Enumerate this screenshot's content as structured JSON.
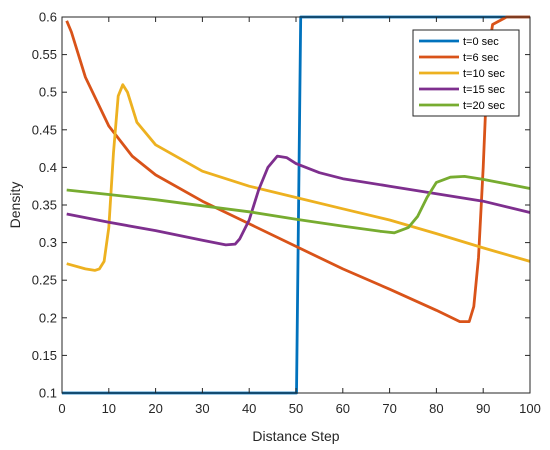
{
  "chart_data": {
    "type": "line",
    "xlabel": "Distance Step",
    "ylabel": "Density",
    "xlim": [
      0,
      100
    ],
    "ylim": [
      0.1,
      0.6
    ],
    "xticks": [
      "0",
      "10",
      "20",
      "30",
      "40",
      "50",
      "60",
      "70",
      "80",
      "90",
      "100"
    ],
    "yticks": [
      "0.1",
      "0.15",
      "0.2",
      "0.25",
      "0.3",
      "0.35",
      "0.4",
      "0.45",
      "0.5",
      "0.55",
      "0.6"
    ],
    "grid": false,
    "legend_position": "top-right",
    "series": [
      {
        "name": "t=0 sec",
        "color": "#0072BD",
        "x": [
          0,
          50,
          50.1,
          51,
          51.5,
          100
        ],
        "y": [
          0.1,
          0.1,
          0.1,
          0.6,
          0.6,
          0.6
        ]
      },
      {
        "name": "t=6 sec",
        "color": "#D95319",
        "x": [
          1,
          2,
          5,
          10,
          15,
          20,
          30,
          40,
          50,
          60,
          70,
          80,
          85,
          87,
          88,
          89,
          90,
          91,
          92,
          95,
          100
        ],
        "y": [
          0.595,
          0.58,
          0.52,
          0.455,
          0.415,
          0.39,
          0.355,
          0.325,
          0.295,
          0.265,
          0.238,
          0.21,
          0.195,
          0.195,
          0.215,
          0.28,
          0.4,
          0.55,
          0.59,
          0.6,
          0.6
        ]
      },
      {
        "name": "t=10 sec",
        "color": "#EDB120",
        "x": [
          1,
          5,
          7,
          8,
          9,
          10,
          11,
          12,
          13,
          14,
          16,
          20,
          30,
          40,
          50,
          60,
          70,
          80,
          90,
          100
        ],
        "y": [
          0.272,
          0.265,
          0.263,
          0.265,
          0.275,
          0.32,
          0.42,
          0.495,
          0.51,
          0.5,
          0.46,
          0.43,
          0.395,
          0.375,
          0.36,
          0.345,
          0.33,
          0.312,
          0.293,
          0.275
        ]
      },
      {
        "name": "t=15 sec",
        "color": "#7E2F8E",
        "x": [
          1,
          10,
          20,
          30,
          35,
          37,
          38,
          40,
          42,
          44,
          46,
          48,
          50,
          55,
          60,
          70,
          80,
          90,
          100
        ],
        "y": [
          0.338,
          0.327,
          0.316,
          0.303,
          0.297,
          0.298,
          0.305,
          0.33,
          0.37,
          0.4,
          0.415,
          0.413,
          0.405,
          0.393,
          0.385,
          0.375,
          0.365,
          0.355,
          0.34
        ]
      },
      {
        "name": "t=20 sec",
        "color": "#77AC30",
        "x": [
          1,
          10,
          20,
          30,
          40,
          50,
          60,
          68,
          71,
          74,
          76,
          78,
          80,
          83,
          86,
          90,
          95,
          100
        ],
        "y": [
          0.37,
          0.364,
          0.357,
          0.349,
          0.341,
          0.331,
          0.322,
          0.315,
          0.313,
          0.32,
          0.335,
          0.36,
          0.38,
          0.387,
          0.388,
          0.384,
          0.378,
          0.372
        ]
      }
    ]
  }
}
